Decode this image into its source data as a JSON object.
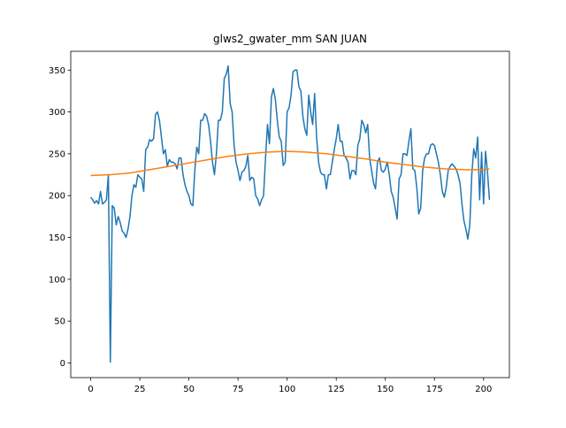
{
  "chart_data": {
    "type": "line",
    "title": "glws2_gwater_mm SAN JUAN",
    "x": [
      0,
      1,
      2,
      3,
      4,
      5,
      6,
      7,
      8,
      9,
      10,
      11,
      12,
      13,
      14,
      15,
      16,
      17,
      18,
      19,
      20,
      21,
      22,
      23,
      24,
      25,
      26,
      27,
      28,
      29,
      30,
      31,
      32,
      33,
      34,
      35,
      36,
      37,
      38,
      39,
      40,
      41,
      42,
      43,
      44,
      45,
      46,
      47,
      48,
      49,
      50,
      51,
      52,
      53,
      54,
      55,
      56,
      57,
      58,
      59,
      60,
      61,
      62,
      63,
      64,
      65,
      66,
      67,
      68,
      69,
      70,
      71,
      72,
      73,
      74,
      75,
      76,
      77,
      78,
      79,
      80,
      81,
      82,
      83,
      84,
      85,
      86,
      87,
      88,
      89,
      90,
      91,
      92,
      93,
      94,
      95,
      96,
      97,
      98,
      99,
      100,
      101,
      102,
      103,
      104,
      105,
      106,
      107,
      108,
      109,
      110,
      111,
      112,
      113,
      114,
      115,
      116,
      117,
      118,
      119,
      120,
      121,
      122,
      123,
      124,
      125,
      126,
      127,
      128,
      129,
      130,
      131,
      132,
      133,
      134,
      135,
      136,
      137,
      138,
      139,
      140,
      141,
      142,
      143,
      144,
      145,
      146,
      147,
      148,
      149,
      150,
      151,
      152,
      153,
      154,
      155,
      156,
      157,
      158,
      159,
      160,
      161,
      162,
      163,
      164,
      165,
      166,
      167,
      168,
      169,
      170,
      171,
      172,
      173,
      174,
      175,
      176,
      177,
      178,
      179,
      180,
      181,
      182,
      183,
      184,
      185,
      186,
      187,
      188,
      189,
      190,
      191,
      192,
      193,
      194,
      195,
      196,
      197,
      198,
      199,
      200,
      201,
      202,
      203
    ],
    "series": [
      {
        "color": "#1f77b4",
        "values": [
          198,
          195,
          191,
          194,
          190,
          205,
          190,
          192,
          195,
          225,
          1,
          188,
          185,
          165,
          175,
          168,
          158,
          155,
          150,
          160,
          175,
          200,
          213,
          210,
          225,
          222,
          220,
          205,
          255,
          258,
          267,
          265,
          268,
          297,
          300,
          290,
          270,
          250,
          255,
          235,
          243,
          240,
          240,
          238,
          232,
          245,
          245,
          225,
          213,
          205,
          200,
          190,
          188,
          230,
          258,
          250,
          290,
          290,
          298,
          295,
          285,
          265,
          240,
          225,
          250,
          290,
          290,
          300,
          340,
          345,
          355,
          310,
          300,
          260,
          240,
          230,
          218,
          228,
          230,
          235,
          248,
          218,
          222,
          220,
          200,
          196,
          188,
          195,
          200,
          245,
          285,
          262,
          318,
          328,
          315,
          290,
          270,
          265,
          236,
          240,
          300,
          305,
          320,
          348,
          350,
          350,
          330,
          325,
          295,
          280,
          272,
          320,
          300,
          285,
          322,
          270,
          240,
          228,
          225,
          225,
          208,
          225,
          225,
          240,
          255,
          268,
          285,
          265,
          265,
          248,
          245,
          240,
          220,
          230,
          230,
          225,
          260,
          268,
          290,
          285,
          275,
          285,
          245,
          230,
          215,
          208,
          240,
          245,
          230,
          228,
          232,
          240,
          225,
          205,
          198,
          185,
          172,
          220,
          225,
          250,
          250,
          248,
          265,
          280,
          232,
          230,
          210,
          178,
          185,
          230,
          245,
          250,
          250,
          260,
          262,
          260,
          250,
          240,
          225,
          205,
          198,
          210,
          230,
          235,
          238,
          235,
          232,
          225,
          215,
          190,
          170,
          160,
          148,
          165,
          225,
          256,
          245,
          270,
          195,
          252,
          190,
          253,
          228,
          195
        ]
      },
      {
        "color": "#ff7f0e",
        "x": [
          0,
          10,
          20,
          30,
          40,
          50,
          60,
          70,
          80,
          90,
          100,
          110,
          120,
          130,
          140,
          150,
          160,
          170,
          180,
          190,
          200,
          203
        ],
        "values": [
          224,
          225,
          227,
          231,
          235,
          239,
          243,
          247,
          250,
          252,
          253,
          252,
          250,
          247,
          244,
          240,
          237,
          234,
          232,
          231,
          231,
          232
        ]
      }
    ],
    "xlim": [
      -10.15,
      213.15
    ],
    "ylim": [
      -17.5,
      372.5
    ],
    "xticks": [
      0,
      25,
      50,
      75,
      100,
      125,
      150,
      175,
      200
    ],
    "yticks": [
      0,
      50,
      100,
      150,
      200,
      250,
      300,
      350
    ]
  }
}
